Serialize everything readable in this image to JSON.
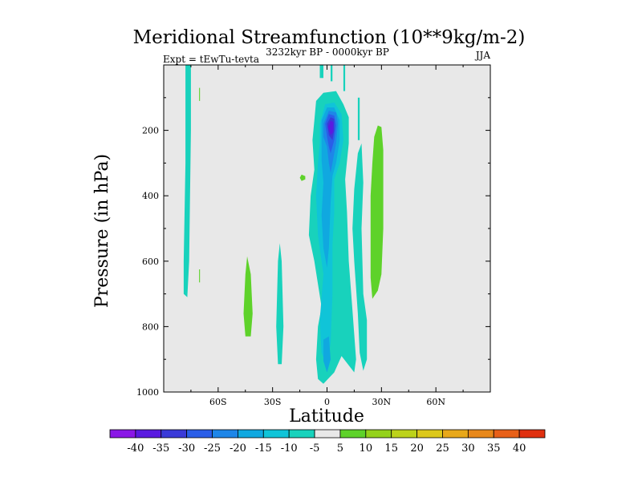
{
  "chart_data": {
    "type": "filled-contour",
    "title": "Meridional Streamfunction (10**9kg/m-2)",
    "subtitle": "3232kyr BP - 0000kyr BP",
    "left_annotation": "Expt = tEwTu-tevta",
    "right_annotation": "JJA",
    "xlabel": "Latitude",
    "ylabel": "Pressure (in hPa)",
    "xlim": [
      -90,
      90
    ],
    "ylim": [
      1000,
      0
    ],
    "x_ticks": [
      {
        "value": -60,
        "label": "60S"
      },
      {
        "value": -30,
        "label": "30S"
      },
      {
        "value": 0,
        "label": "0"
      },
      {
        "value": 30,
        "label": "30N"
      },
      {
        "value": 60,
        "label": "60N"
      }
    ],
    "y_ticks": [
      {
        "value": 200,
        "label": "200"
      },
      {
        "value": 400,
        "label": "400"
      },
      {
        "value": 600,
        "label": "600"
      },
      {
        "value": 800,
        "label": "800"
      },
      {
        "value": 1000,
        "label": "1000"
      }
    ],
    "background_color": "#e8e8e8",
    "colorbar": {
      "labels": [
        "-40",
        "-35",
        "-30",
        "-25",
        "-20",
        "-15",
        "-10",
        "-5",
        "5",
        "10",
        "15",
        "20",
        "25",
        "30",
        "35",
        "40"
      ],
      "colors": [
        "#8a17e6",
        "#5a1ae0",
        "#3a3ad8",
        "#2a5ee8",
        "#1e86e8",
        "#10a8e0",
        "#10c4d8",
        "#18d2bc",
        "#e8e8e8",
        "#5ed22a",
        "#94d21a",
        "#bcd21a",
        "#dcc81a",
        "#e8a81a",
        "#e8881a",
        "#e86018",
        "#e03010"
      ]
    },
    "contours": [
      {
        "name": "sh-polar-band",
        "level": -5,
        "color": "#18d2bc",
        "points": [
          [
            -78,
            0
          ],
          [
            -75,
            0
          ],
          [
            -75,
            200
          ],
          [
            -76,
            600
          ],
          [
            -77,
            710
          ],
          [
            -79,
            700
          ],
          [
            -79,
            600
          ],
          [
            -78,
            300
          ]
        ]
      },
      {
        "name": "sh-polar-green-sliver",
        "level": 5,
        "color": "#5ed22a",
        "points": [
          [
            -70.5,
            70
          ],
          [
            -70,
            70
          ],
          [
            -70,
            110
          ],
          [
            -70.5,
            110
          ]
        ]
      },
      {
        "name": "sh-polar-green-sliver-lower",
        "level": 5,
        "color": "#5ed22a",
        "points": [
          [
            -70.5,
            625
          ],
          [
            -70,
            625
          ],
          [
            -70,
            665
          ],
          [
            -70.5,
            665
          ]
        ]
      },
      {
        "name": "sh-midlat-green",
        "level": 5,
        "color": "#5ed22a",
        "points": [
          [
            -44,
            585
          ],
          [
            -42,
            640
          ],
          [
            -41,
            760
          ],
          [
            -42,
            830
          ],
          [
            -45,
            830
          ],
          [
            -46,
            760
          ],
          [
            -45,
            640
          ]
        ]
      },
      {
        "name": "sh-midlat-band",
        "level": -5,
        "color": "#18d2bc",
        "points": [
          [
            -26,
            545
          ],
          [
            -25,
            600
          ],
          [
            -24,
            800
          ],
          [
            -25,
            915
          ],
          [
            -27,
            915
          ],
          [
            -28,
            800
          ],
          [
            -27,
            600
          ]
        ]
      },
      {
        "name": "sh-small-green",
        "level": 5,
        "color": "#5ed22a",
        "points": [
          [
            -14,
            335
          ],
          [
            -12,
            340
          ],
          [
            -12,
            350
          ],
          [
            -14,
            355
          ],
          [
            -15,
            345
          ]
        ]
      },
      {
        "name": "equatorial-outer",
        "level": -5,
        "color": "#18d2bc",
        "points": [
          [
            -7,
            170
          ],
          [
            -6,
            110
          ],
          [
            -2,
            85
          ],
          [
            5,
            80
          ],
          [
            9,
            120
          ],
          [
            12,
            160
          ],
          [
            12,
            240
          ],
          [
            10,
            350
          ],
          [
            11,
            450
          ],
          [
            12,
            600
          ],
          [
            14,
            750
          ],
          [
            16,
            900
          ],
          [
            15,
            940
          ],
          [
            8,
            890
          ],
          [
            4,
            940
          ],
          [
            -2,
            975
          ],
          [
            -5,
            960
          ],
          [
            -6,
            900
          ],
          [
            -5,
            800
          ],
          [
            -3,
            740
          ],
          [
            -7,
            600
          ],
          [
            -10,
            520
          ],
          [
            -9,
            400
          ],
          [
            -7,
            320
          ],
          [
            -8,
            230
          ]
        ]
      },
      {
        "name": "equatorial-top-upper-left",
        "level": -5,
        "color": "#18d2bc",
        "points": [
          [
            -4,
            0
          ],
          [
            -2,
            0
          ],
          [
            -2,
            40
          ],
          [
            -4,
            40
          ]
        ]
      },
      {
        "name": "equatorial-top-upper-right",
        "level": -5,
        "color": "#18d2bc",
        "points": [
          [
            2,
            0
          ],
          [
            3,
            0
          ],
          [
            3,
            50
          ],
          [
            2,
            50
          ]
        ]
      },
      {
        "name": "equatorial-top-upper-far-right",
        "level": -5,
        "color": "#18d2bc",
        "points": [
          [
            9,
            0
          ],
          [
            10,
            0
          ],
          [
            10,
            80
          ],
          [
            9,
            80
          ]
        ]
      },
      {
        "name": "equatorial-level-10",
        "level": -10,
        "color": "#10c4d8",
        "points": [
          [
            -4,
            180
          ],
          [
            -1,
            120
          ],
          [
            4,
            115
          ],
          [
            8,
            150
          ],
          [
            9,
            230
          ],
          [
            7,
            300
          ],
          [
            4,
            350
          ],
          [
            4,
            450
          ],
          [
            3,
            550
          ],
          [
            3,
            700
          ],
          [
            2,
            850
          ],
          [
            0,
            920
          ],
          [
            -3,
            880
          ],
          [
            -4,
            780
          ],
          [
            -2,
            640
          ],
          [
            -5,
            520
          ],
          [
            -6,
            400
          ],
          [
            -5,
            300
          ],
          [
            -4,
            240
          ]
        ]
      },
      {
        "name": "equatorial-level-15",
        "level": -15,
        "color": "#10a8e0",
        "points": [
          [
            -3,
            170
          ],
          [
            0,
            130
          ],
          [
            4,
            130
          ],
          [
            7,
            170
          ],
          [
            7,
            230
          ],
          [
            5,
            300
          ],
          [
            3,
            340
          ],
          [
            2,
            420
          ],
          [
            1,
            560
          ],
          [
            0,
            620
          ],
          [
            -2,
            560
          ],
          [
            -3,
            460
          ],
          [
            -2,
            360
          ],
          [
            -3,
            290
          ],
          [
            -3,
            230
          ]
        ]
      },
      {
        "name": "equatorial-level-20",
        "level": -20,
        "color": "#1e86e8",
        "points": [
          [
            -2,
            180
          ],
          [
            1,
            140
          ],
          [
            5,
            145
          ],
          [
            6,
            180
          ],
          [
            5,
            240
          ],
          [
            3,
            300
          ],
          [
            2,
            330
          ],
          [
            1,
            300
          ],
          [
            0,
            250
          ],
          [
            -2,
            220
          ]
        ]
      },
      {
        "name": "equatorial-lower-15",
        "level": -15,
        "color": "#10a8e0",
        "points": [
          [
            -2,
            840
          ],
          [
            1,
            830
          ],
          [
            2,
            900
          ],
          [
            0,
            940
          ],
          [
            -2,
            905
          ]
        ]
      },
      {
        "name": "equatorial-level-25",
        "level": -25,
        "color": "#2a5ee8",
        "points": [
          [
            -1,
            180
          ],
          [
            1,
            150
          ],
          [
            4,
            155
          ],
          [
            5,
            185
          ],
          [
            4,
            230
          ],
          [
            2,
            270
          ],
          [
            1,
            250
          ],
          [
            0,
            220
          ]
        ]
      },
      {
        "name": "equatorial-level-30",
        "level": -30,
        "color": "#3a3ad8",
        "points": [
          [
            0,
            180
          ],
          [
            2,
            160
          ],
          [
            4,
            165
          ],
          [
            4,
            200
          ],
          [
            3,
            230
          ],
          [
            1,
            215
          ]
        ]
      },
      {
        "name": "equatorial-level-35",
        "level": -35,
        "color": "#5a1ae0",
        "points": [
          [
            0.5,
            190
          ],
          [
            2,
            170
          ],
          [
            3.5,
            175
          ],
          [
            3.5,
            205
          ],
          [
            2,
            215
          ]
        ]
      },
      {
        "name": "nh-subtropic-band-upper",
        "level": -5,
        "color": "#18d2bc",
        "points": [
          [
            17,
            270
          ],
          [
            19,
            240
          ],
          [
            20,
            360
          ],
          [
            19,
            500
          ],
          [
            20,
            700
          ],
          [
            22,
            780
          ],
          [
            22,
            900
          ],
          [
            20,
            935
          ],
          [
            18,
            880
          ],
          [
            17,
            760
          ],
          [
            15,
            600
          ],
          [
            14,
            500
          ],
          [
            15,
            380
          ]
        ]
      },
      {
        "name": "nh-subtropic-band-top",
        "level": -5,
        "color": "#18d2bc",
        "points": [
          [
            17,
            100
          ],
          [
            18,
            100
          ],
          [
            18,
            230
          ],
          [
            17,
            230
          ]
        ]
      },
      {
        "name": "nh-subtropic-green",
        "level": 5,
        "color": "#5ed22a",
        "points": [
          [
            26,
            220
          ],
          [
            28,
            185
          ],
          [
            30,
            190
          ],
          [
            31,
            260
          ],
          [
            31,
            500
          ],
          [
            30,
            640
          ],
          [
            28,
            690
          ],
          [
            25,
            715
          ],
          [
            24,
            650
          ],
          [
            24,
            400
          ],
          [
            25,
            300
          ]
        ]
      }
    ]
  }
}
